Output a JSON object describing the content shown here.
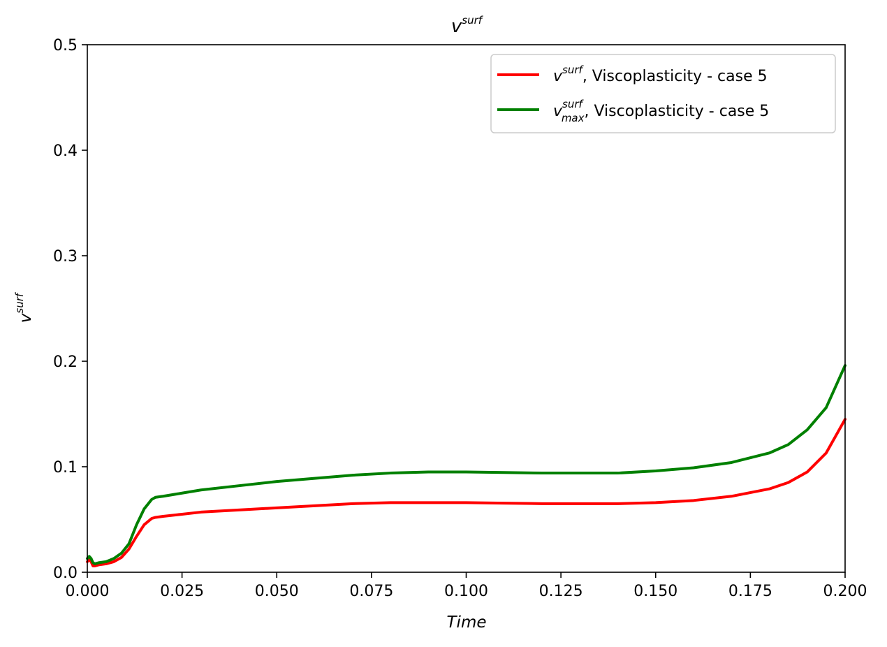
{
  "chart_data": {
    "type": "line",
    "title_base": "v",
    "title_sup": "surf",
    "xlabel": "Time",
    "ylabel_base": "v",
    "ylabel_sup": "surf",
    "xlim": [
      0.0,
      0.2
    ],
    "ylim": [
      0.0,
      0.5
    ],
    "xticks": [
      0.0,
      0.025,
      0.05,
      0.075,
      0.1,
      0.125,
      0.15,
      0.175,
      0.2
    ],
    "xtick_labels": [
      "0.000",
      "0.025",
      "0.050",
      "0.075",
      "0.100",
      "0.125",
      "0.150",
      "0.175",
      "0.200"
    ],
    "yticks": [
      0.0,
      0.1,
      0.2,
      0.3,
      0.4,
      0.5
    ],
    "ytick_labels": [
      "0.0",
      "0.1",
      "0.2",
      "0.3",
      "0.4",
      "0.5"
    ],
    "grid": false,
    "legend_position": "top-right",
    "series": [
      {
        "name": "v^surf, Viscoplasticity - case 5",
        "legend_base": "v",
        "legend_sup": "surf",
        "legend_sub": "",
        "legend_suffix": ", Viscoplasticity - case 5",
        "color": "#ff0000",
        "x": [
          0.0,
          0.0005,
          0.001,
          0.0015,
          0.002,
          0.003,
          0.005,
          0.007,
          0.009,
          0.011,
          0.013,
          0.015,
          0.017,
          0.018,
          0.02,
          0.025,
          0.03,
          0.04,
          0.05,
          0.06,
          0.07,
          0.08,
          0.09,
          0.1,
          0.11,
          0.12,
          0.13,
          0.14,
          0.15,
          0.16,
          0.17,
          0.18,
          0.185,
          0.19,
          0.195,
          0.2
        ],
        "y": [
          0.01,
          0.012,
          0.01,
          0.006,
          0.006,
          0.007,
          0.008,
          0.01,
          0.014,
          0.022,
          0.034,
          0.045,
          0.051,
          0.052,
          0.053,
          0.055,
          0.057,
          0.059,
          0.061,
          0.063,
          0.065,
          0.066,
          0.066,
          0.066,
          0.0655,
          0.065,
          0.065,
          0.065,
          0.066,
          0.068,
          0.072,
          0.079,
          0.085,
          0.095,
          0.113,
          0.145
        ]
      },
      {
        "name": "v_max^surf, Viscoplasticity - case 5",
        "legend_base": "v",
        "legend_sup": "surf",
        "legend_sub": "max",
        "legend_suffix": ", Viscoplasticity - case 5",
        "color": "#008000",
        "x": [
          0.0,
          0.0005,
          0.001,
          0.0015,
          0.002,
          0.003,
          0.005,
          0.007,
          0.009,
          0.011,
          0.013,
          0.015,
          0.017,
          0.018,
          0.02,
          0.025,
          0.03,
          0.04,
          0.05,
          0.06,
          0.07,
          0.08,
          0.09,
          0.1,
          0.11,
          0.12,
          0.13,
          0.14,
          0.15,
          0.16,
          0.17,
          0.18,
          0.185,
          0.19,
          0.195,
          0.2
        ],
        "y": [
          0.013,
          0.015,
          0.013,
          0.009,
          0.008,
          0.009,
          0.01,
          0.013,
          0.018,
          0.027,
          0.045,
          0.06,
          0.069,
          0.071,
          0.072,
          0.075,
          0.078,
          0.082,
          0.086,
          0.089,
          0.092,
          0.094,
          0.095,
          0.095,
          0.0945,
          0.094,
          0.094,
          0.094,
          0.096,
          0.099,
          0.104,
          0.113,
          0.121,
          0.135,
          0.156,
          0.196
        ]
      }
    ]
  }
}
